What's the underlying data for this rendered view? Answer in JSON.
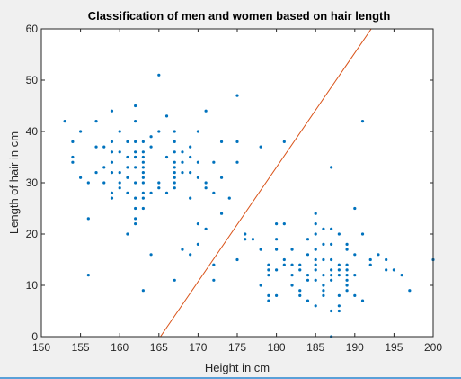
{
  "chart_data": {
    "type": "scatter",
    "title": "Classification of men and women based on hair length",
    "xlabel": "Height in cm",
    "ylabel": "Length of hair in cm",
    "xlim": [
      150,
      200
    ],
    "ylim": [
      0,
      60
    ],
    "xticks": [
      "150",
      "155",
      "160",
      "165",
      "170",
      "175",
      "180",
      "185",
      "190",
      "195",
      "200"
    ],
    "yticks": [
      "0",
      "10",
      "20",
      "30",
      "40",
      "50",
      "60"
    ],
    "grid": false,
    "colors": {
      "points": "#0072bd",
      "boundary": "#d95319",
      "plot_background": "#ffffff",
      "figure_background": "#f0f0f0"
    },
    "series": [
      {
        "x": [
          153,
          154,
          154,
          154,
          155,
          155,
          156,
          156,
          156,
          157,
          157,
          157,
          158,
          158,
          158,
          159,
          159,
          159,
          159,
          159,
          159,
          159,
          160,
          160,
          160,
          160,
          160,
          161,
          161,
          161,
          161,
          161,
          161,
          162,
          162,
          162,
          162,
          162,
          162,
          162,
          162,
          162,
          162,
          162,
          162,
          163,
          163,
          163,
          163,
          163,
          163,
          163,
          163,
          163,
          163,
          163,
          163,
          164,
          164,
          164,
          164,
          165,
          165,
          165,
          165,
          166,
          166,
          166,
          167,
          167,
          167,
          167,
          167,
          167,
          167,
          167,
          167,
          167,
          168,
          168,
          168,
          168,
          169,
          169,
          169,
          169,
          169,
          170,
          170,
          170,
          170,
          170,
          171,
          171,
          171,
          171,
          172,
          172,
          172,
          172,
          173,
          173,
          173,
          174,
          175,
          175,
          175,
          175,
          176,
          176,
          177,
          178,
          178,
          178,
          179,
          179,
          179,
          179,
          179,
          180,
          180,
          180,
          180,
          180,
          181,
          181,
          181,
          181,
          182,
          182,
          182,
          182,
          183,
          183,
          183,
          183,
          184,
          184,
          184,
          184,
          184,
          185,
          185,
          185,
          185,
          185,
          185,
          185,
          185,
          185,
          186,
          186,
          186,
          186,
          186,
          186,
          186,
          187,
          187,
          187,
          187,
          187,
          187,
          187,
          187,
          187,
          188,
          188,
          188,
          188,
          188,
          188,
          188,
          189,
          189,
          189,
          189,
          189,
          189,
          189,
          189,
          190,
          190,
          190,
          190,
          191,
          191,
          191,
          192,
          192,
          193,
          194,
          194,
          195,
          196,
          197,
          200
        ],
        "y": [
          42,
          38,
          35,
          34,
          40,
          31,
          30,
          23,
          12,
          42,
          37,
          32,
          37,
          33,
          30,
          44,
          38,
          36,
          34,
          32,
          28,
          27,
          40,
          36,
          32,
          30,
          29,
          38,
          35,
          33,
          20,
          28,
          31,
          45,
          42,
          38,
          36,
          35,
          33,
          30,
          27,
          25,
          23,
          22,
          35,
          38,
          36,
          35,
          34,
          33,
          32,
          31,
          30,
          28,
          27,
          25,
          9,
          39,
          37,
          16,
          28,
          51,
          40,
          30,
          29,
          43,
          35,
          28,
          40,
          38,
          36,
          34,
          33,
          32,
          31,
          30,
          29,
          11,
          36,
          34,
          32,
          17,
          37,
          35,
          32,
          27,
          16,
          40,
          34,
          31,
          22,
          18,
          44,
          30,
          29,
          21,
          34,
          28,
          14,
          11,
          38,
          31,
          24,
          27,
          47,
          38,
          34,
          15,
          20,
          19,
          19,
          37,
          17,
          10,
          14,
          13,
          12,
          8,
          7,
          22,
          19,
          17,
          13,
          8,
          38,
          22,
          15,
          14,
          17,
          14,
          12,
          10,
          14,
          13,
          9,
          8,
          19,
          16,
          12,
          11,
          7,
          24,
          22,
          20,
          17,
          15,
          14,
          13,
          11,
          6,
          21,
          18,
          15,
          12,
          10,
          9,
          8,
          33,
          21,
          18,
          15,
          13,
          12,
          11,
          5,
          0,
          20,
          14,
          13,
          12,
          8,
          6,
          5,
          18,
          17,
          14,
          13,
          12,
          11,
          10,
          9,
          25,
          16,
          12,
          8,
          42,
          20,
          7,
          15,
          14,
          16,
          15,
          13,
          13,
          12,
          9,
          15
        ],
        "marker": "dot"
      }
    ],
    "boundary_line": {
      "x": [
        165.2,
        192.1
      ],
      "y": [
        0,
        60
      ]
    }
  }
}
